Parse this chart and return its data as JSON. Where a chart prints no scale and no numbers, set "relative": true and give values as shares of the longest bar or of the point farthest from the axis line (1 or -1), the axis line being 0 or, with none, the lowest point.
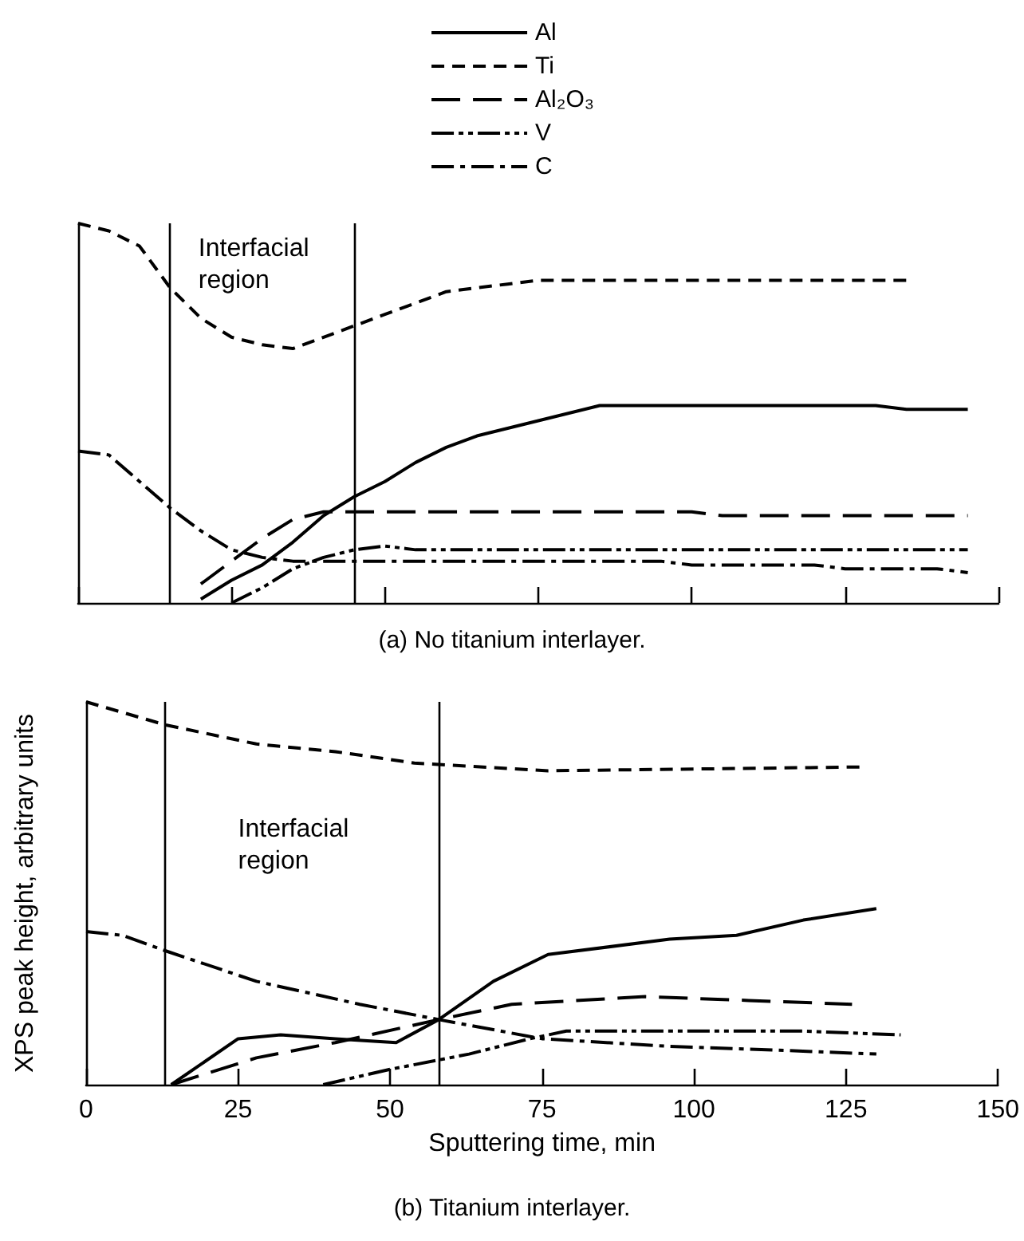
{
  "chart_data": [
    {
      "type": "line",
      "title": "(a) No titanium interlayer.",
      "relative": true,
      "tick_labels": false,
      "legend": "top",
      "grid": false,
      "categories": [
        null,
        null,
        null,
        null,
        null,
        null,
        null,
        null,
        null,
        null,
        null,
        null,
        null,
        null,
        null,
        null,
        null,
        null,
        null,
        null,
        null,
        null,
        null,
        null,
        null,
        null,
        null,
        null,
        null,
        null,
        null
      ],
      "annotations": [
        "Interfacial region"
      ],
      "series": [
        {
          "name": "Al",
          "color": "#000000",
          "line_style": "solid",
          "values": [
            null,
            null,
            null,
            null,
            0.01,
            0.06,
            0.1,
            0.16,
            0.23,
            0.28,
            0.32,
            0.37,
            0.41,
            0.44,
            0.46,
            0.48,
            0.5,
            0.52,
            0.52,
            0.52,
            0.52,
            0.52,
            0.52,
            0.52,
            0.52,
            0.52,
            0.52,
            0.51,
            0.51,
            0.51,
            null
          ]
        },
        {
          "name": "Ti",
          "color": "#000000",
          "line_style": "dashed",
          "values": [
            1.0,
            0.98,
            0.94,
            0.83,
            0.75,
            0.7,
            0.68,
            0.67,
            0.7,
            0.73,
            0.76,
            0.79,
            0.82,
            0.83,
            0.84,
            0.85,
            0.85,
            0.85,
            0.85,
            0.85,
            0.85,
            0.85,
            0.85,
            0.85,
            0.85,
            0.85,
            0.85,
            0.85,
            null,
            null,
            null
          ]
        },
        {
          "name": "Al₂O₃",
          "color": "#000000",
          "line_style": "longdash",
          "values": [
            null,
            null,
            null,
            null,
            0.05,
            0.11,
            0.17,
            0.22,
            0.24,
            0.24,
            0.24,
            0.24,
            0.24,
            0.24,
            0.24,
            0.24,
            0.24,
            0.24,
            0.24,
            0.24,
            0.24,
            0.23,
            0.23,
            0.23,
            0.23,
            0.23,
            0.23,
            0.23,
            0.23,
            0.23,
            null
          ]
        },
        {
          "name": "V",
          "color": "#000000",
          "line_style": "dashdotdot",
          "values": [
            null,
            null,
            null,
            null,
            null,
            0,
            0.04,
            0.09,
            0.12,
            0.14,
            0.15,
            0.14,
            0.14,
            0.14,
            0.14,
            0.14,
            0.14,
            0.14,
            0.14,
            0.14,
            0.14,
            0.14,
            0.14,
            0.14,
            0.14,
            0.14,
            0.14,
            0.14,
            0.14,
            0.14,
            null
          ]
        },
        {
          "name": "C",
          "color": "#000000",
          "line_style": "dashdot",
          "values": [
            0.4,
            0.39,
            0.32,
            0.25,
            0.19,
            0.14,
            0.12,
            0.11,
            0.11,
            0.11,
            0.11,
            0.11,
            0.11,
            0.11,
            0.11,
            0.11,
            0.11,
            0.11,
            0.11,
            0.11,
            0.1,
            0.1,
            0.1,
            0.1,
            0.1,
            0.09,
            0.09,
            0.09,
            0.09,
            0.08,
            null
          ]
        }
      ]
    },
    {
      "type": "line",
      "title": "(b) Titanium interlayer.",
      "relative": true,
      "xlabel": "Sputtering time, min",
      "ylabel": "XPS peak height, arbitrary units",
      "xlim": [
        0,
        150
      ],
      "xticks": [
        0,
        25,
        50,
        75,
        100,
        125,
        150
      ],
      "tick_labels": "x",
      "grid": false,
      "ref_lines": [
        {
          "axis": "x",
          "value": 13
        },
        {
          "axis": "x",
          "value": 58
        }
      ],
      "annotations": [
        "Interfacial region"
      ],
      "series": [
        {
          "color": "#000000",
          "line_style": "solid",
          "x": [
            14,
            25,
            32,
            41,
            51,
            58,
            67,
            76,
            96,
            107,
            118,
            130
          ],
          "values": [
            0,
            0.12,
            0.13,
            0.12,
            0.11,
            0.17,
            0.27,
            0.34,
            0.38,
            0.39,
            0.43,
            0.46
          ]
        },
        {
          "color": "#000000",
          "line_style": "dashed",
          "x": [
            0,
            13,
            28,
            41,
            54,
            76,
            128
          ],
          "values": [
            1.0,
            0.94,
            0.89,
            0.87,
            0.84,
            0.82,
            0.83
          ]
        },
        {
          "color": "#000000",
          "line_style": "longdash",
          "x": [
            14,
            28,
            41,
            58,
            70,
            92,
            109,
            126
          ],
          "values": [
            0,
            0.07,
            0.11,
            0.17,
            0.21,
            0.23,
            0.22,
            0.21
          ]
        },
        {
          "color": "#000000",
          "line_style": "dashdotdot",
          "x": [
            39,
            50,
            63,
            73,
            79,
            96,
            118,
            134
          ],
          "values": [
            0,
            0.04,
            0.08,
            0.12,
            0.14,
            0.14,
            0.14,
            0.13
          ]
        },
        {
          "color": "#000000",
          "line_style": "dashdot",
          "x": [
            0,
            6,
            13,
            28,
            45,
            58,
            75,
            96,
            114,
            130
          ],
          "values": [
            0.4,
            0.39,
            0.35,
            0.27,
            0.21,
            0.17,
            0.12,
            0.1,
            0.09,
            0.08
          ]
        }
      ]
    }
  ]
}
